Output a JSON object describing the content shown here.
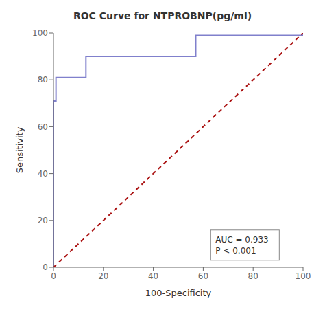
{
  "chart_data": {
    "type": "line",
    "title": "ROC Curve for NTPROBNP(pg/ml)",
    "xlabel": "100-Specificity",
    "ylabel": "Sensitivity",
    "xlim": [
      0,
      100
    ],
    "ylim": [
      0,
      100
    ],
    "xticks": [
      0,
      20,
      40,
      60,
      80,
      100
    ],
    "yticks": [
      0,
      20,
      40,
      60,
      80,
      100
    ],
    "grid": false,
    "series": [
      {
        "x": [
          0,
          0,
          1,
          1,
          13,
          13,
          57,
          57,
          100,
          100
        ],
        "values": [
          0,
          71,
          71,
          81,
          81,
          90,
          90,
          99,
          99,
          100
        ],
        "color": "#8080cc",
        "line_style": "solid"
      },
      {
        "x": [
          0,
          100
        ],
        "values": [
          0,
          100
        ],
        "color": "#aa1111",
        "line_style": "dashed"
      }
    ],
    "annotations": [
      {
        "text": "AUC = 0.933\nP < 0.001",
        "x": 63,
        "y": 3
      }
    ]
  }
}
